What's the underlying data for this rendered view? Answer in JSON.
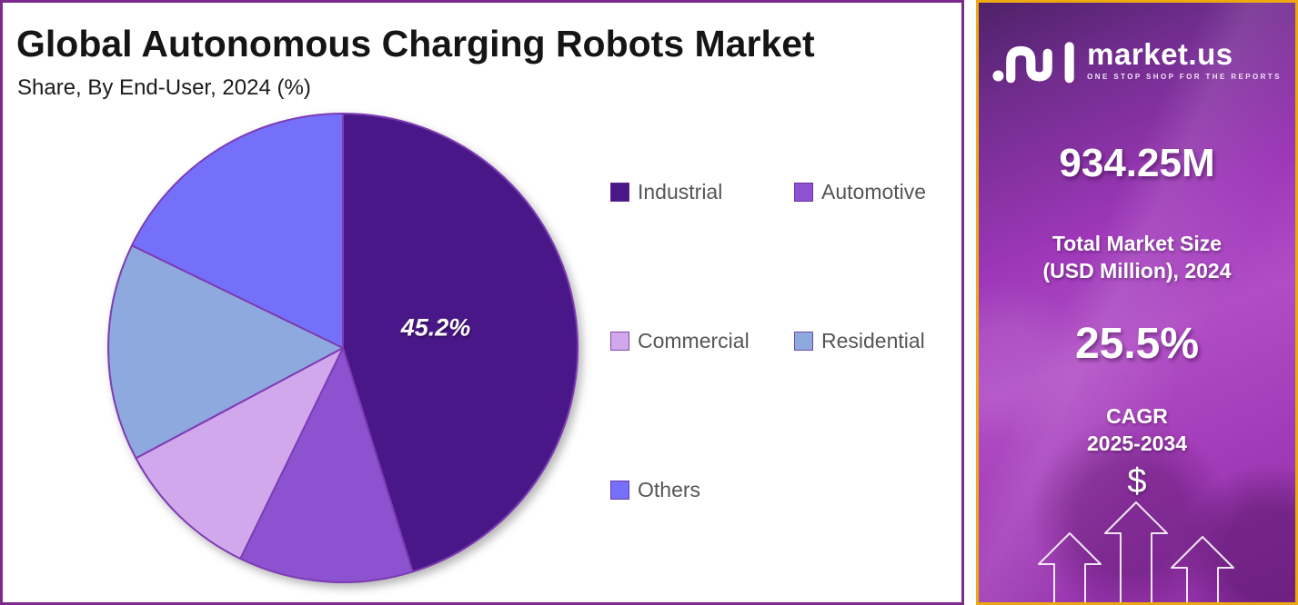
{
  "page": {
    "panel_border_color": "#7D2A8F",
    "sidebar_border_color": "#EDA812",
    "background": "#FFFFFF"
  },
  "header": {
    "title": "Global Autonomous Charging Robots Market",
    "subtitle": "Share, By End-User, 2024 (%)"
  },
  "chart_data": {
    "type": "pie",
    "title": "Global Autonomous Charging Robots Market Share, By End-User, 2024 (%)",
    "labels": [
      "Industrial",
      "Automotive",
      "Commercial",
      "Residential",
      "Others"
    ],
    "values": [
      45.2,
      12.0,
      10.0,
      15.0,
      17.8
    ],
    "colors": [
      "#4A1788",
      "#8C52CF",
      "#D1A8EC",
      "#8DA9DE",
      "#7570FA"
    ],
    "slice_labels": [
      "45.2%",
      "",
      "",
      "",
      ""
    ],
    "stroke_color": "#7D3CB5",
    "start_angle_deg": 0,
    "direction": "clockwise",
    "legend_position": "right",
    "legend_text_color": "#565656"
  },
  "sidebar": {
    "brand": "market.us",
    "tagline": "ONE STOP SHOP FOR THE REPORTS",
    "market_size_value": "934.25M",
    "market_size_label_line1": "Total Market Size",
    "market_size_label_line2": "(USD Million), 2024",
    "cagr_value": "25.5%",
    "cagr_label_line1": "CAGR",
    "cagr_label_line2": "2025-2034",
    "dollar_symbol": "$"
  }
}
